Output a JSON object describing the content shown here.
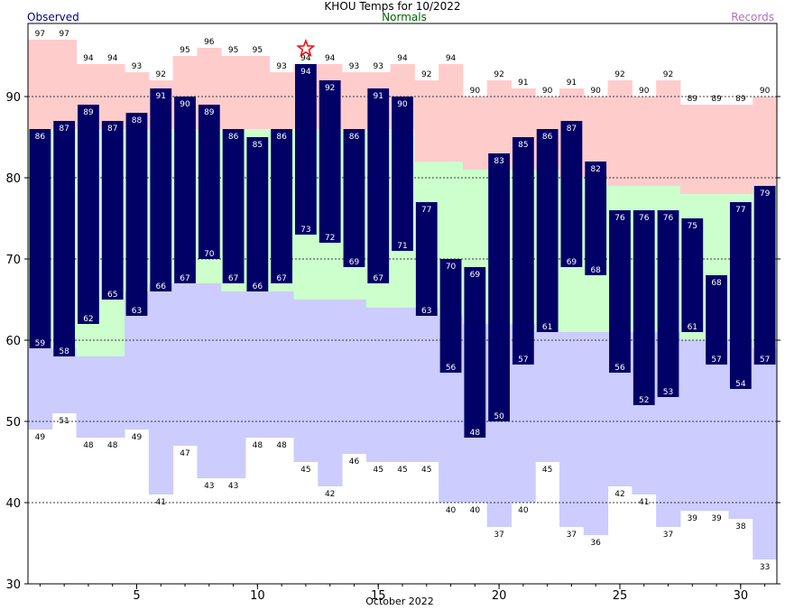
{
  "chart_data": {
    "type": "bar",
    "title": "KHOU Temps for 10/2022",
    "legend": {
      "observed": "Observed",
      "normals": "Normals",
      "records": "Records"
    },
    "xlabel": "October 2022",
    "ylabel": "",
    "days": [
      1,
      2,
      3,
      4,
      5,
      6,
      7,
      8,
      9,
      10,
      11,
      12,
      13,
      14,
      15,
      16,
      17,
      18,
      19,
      20,
      21,
      22,
      23,
      24,
      25,
      26,
      27,
      28,
      29,
      30,
      31
    ],
    "xticks": [
      5,
      10,
      15,
      20,
      25,
      30
    ],
    "yticks": [
      30,
      40,
      50,
      60,
      70,
      80,
      90
    ],
    "ylim": [
      30,
      99
    ],
    "record_high": [
      97,
      97,
      94,
      94,
      93,
      92,
      95,
      96,
      95,
      95,
      93,
      94,
      94,
      93,
      93,
      94,
      92,
      94,
      90,
      92,
      91,
      90,
      91,
      90,
      92,
      90,
      92,
      89,
      89,
      89,
      90
    ],
    "record_low": [
      49,
      51,
      48,
      48,
      49,
      41,
      47,
      43,
      43,
      48,
      48,
      45,
      42,
      46,
      45,
      45,
      45,
      40,
      40,
      37,
      40,
      45,
      37,
      36,
      42,
      41,
      37,
      39,
      39,
      38,
      33
    ],
    "normal_high": [
      86,
      86,
      86,
      86,
      86,
      86,
      86,
      86,
      86,
      86,
      86,
      86,
      86,
      86,
      86,
      86,
      82,
      82,
      81,
      81,
      81,
      81,
      80,
      80,
      79,
      79,
      79,
      78,
      78,
      78,
      79
    ],
    "normal_low": [
      59,
      59,
      58,
      58,
      66,
      67,
      67,
      67,
      66,
      66,
      66,
      65,
      65,
      65,
      64,
      64,
      64,
      63,
      62,
      62,
      62,
      61,
      61,
      61,
      61,
      61,
      61,
      60,
      60,
      60,
      59
    ],
    "observed_high": [
      86,
      87,
      89,
      87,
      88,
      91,
      90,
      89,
      86,
      85,
      86,
      94,
      92,
      86,
      91,
      90,
      77,
      70,
      69,
      83,
      85,
      86,
      87,
      82,
      76,
      76,
      76,
      75,
      68,
      77,
      79
    ],
    "observed_low": [
      59,
      58,
      62,
      65,
      63,
      66,
      67,
      70,
      67,
      66,
      67,
      73,
      72,
      69,
      67,
      71,
      63,
      56,
      48,
      50,
      57,
      61,
      69,
      68,
      56,
      52,
      53,
      61,
      57,
      54,
      57
    ],
    "record_set_days": [
      12
    ],
    "colors": {
      "observed_bar": "#000066",
      "record_high_fill": "#ffcccc",
      "normal_fill": "#ccffcc",
      "record_low_fill": "#ccccff",
      "record_marker": "#ff0000",
      "gridline": "#000000"
    },
    "grid": "dashed horizontal at each y tick"
  }
}
